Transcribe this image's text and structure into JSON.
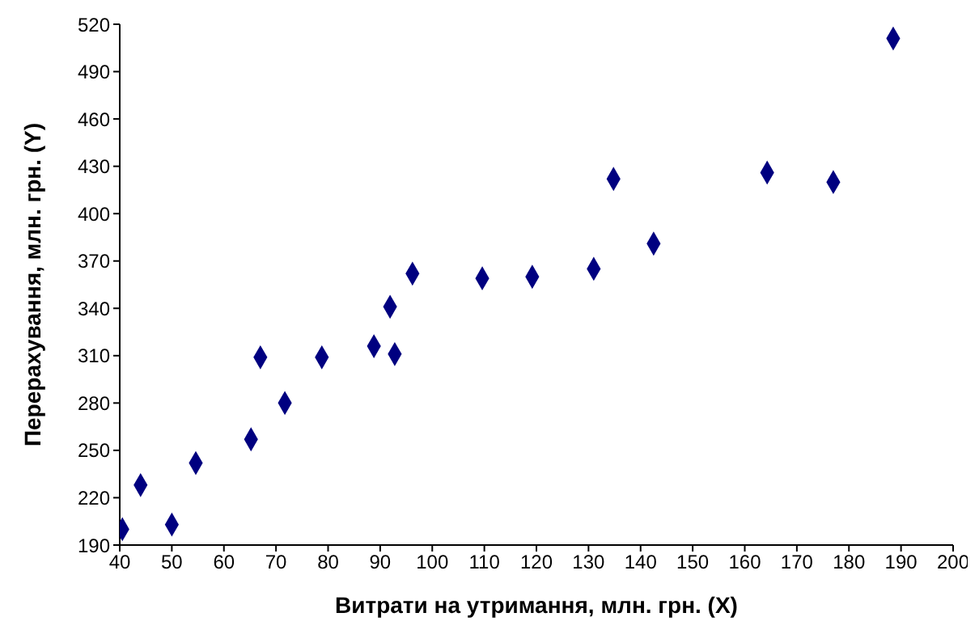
{
  "chart_data": {
    "type": "scatter",
    "xlabel": "Витрати на утримання, млн. грн. (X)",
    "ylabel": "Перерахування, млн. грн. (Y)",
    "xlim": [
      40,
      200
    ],
    "xticks": [
      40,
      50,
      60,
      70,
      80,
      90,
      100,
      110,
      120,
      130,
      140,
      150,
      160,
      170,
      180,
      190,
      200
    ],
    "ylim": [
      190,
      520
    ],
    "yticks": [
      190,
      220,
      250,
      280,
      310,
      340,
      370,
      400,
      430,
      460,
      490,
      520
    ],
    "grid": false,
    "legend": false,
    "marker": "diamond",
    "series": [
      {
        "color": "#000080",
        "x": [
          40.5,
          44,
          50,
          54.6,
          65.2,
          67,
          71.7,
          78.8,
          88.8,
          91.9,
          92.8,
          96.2,
          109.6,
          119.2,
          131,
          134.8,
          142.5,
          164.3,
          177,
          188.5
        ],
        "values": [
          200,
          228,
          203,
          242,
          257,
          309,
          280,
          309,
          316,
          341,
          311,
          362,
          359,
          360,
          365,
          422,
          381,
          426,
          420,
          511
        ]
      }
    ]
  }
}
